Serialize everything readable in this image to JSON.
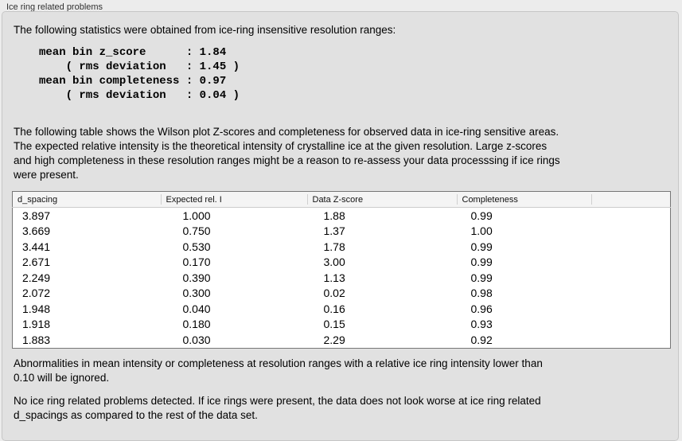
{
  "panel": {
    "title": "Ice ring related problems"
  },
  "intro": "The following statistics were obtained from ice-ring insensitive resolution ranges:",
  "stats_block": "mean bin z_score      : 1.84\n    ( rms deviation   : 1.45 )\nmean bin completeness : 0.97\n    ( rms deviation   : 0.04 )",
  "description": "The following table shows the Wilson plot Z-scores and completeness for observed data in ice-ring sensitive areas.\nThe expected relative intensity is the theoretical intensity of crystalline ice at the given resolution. Large z-scores\nand high completeness in these resolution ranges might be a reason to re-assess your data processsing if ice rings\nwere present.",
  "table": {
    "headers": [
      "d_spacing",
      "Expected rel. I",
      "Data Z-score",
      "Completeness",
      ""
    ],
    "rows": [
      [
        "3.897",
        "1.000",
        "1.88",
        "0.99"
      ],
      [
        "3.669",
        "0.750",
        "1.37",
        "1.00"
      ],
      [
        "3.441",
        "0.530",
        "1.78",
        "0.99"
      ],
      [
        "2.671",
        "0.170",
        "3.00",
        "0.99"
      ],
      [
        "2.249",
        "0.390",
        "1.13",
        "0.99"
      ],
      [
        "2.072",
        "0.300",
        "0.02",
        "0.98"
      ],
      [
        "1.948",
        "0.040",
        "0.16",
        "0.96"
      ],
      [
        "1.918",
        "0.180",
        "0.15",
        "0.93"
      ],
      [
        "1.883",
        "0.030",
        "2.29",
        "0.92"
      ]
    ]
  },
  "ignore_note": "Abnormalities in mean intensity or completeness at resolution ranges with a relative ice ring intensity lower than\n0.10 will be ignored.",
  "conclusion": "No ice ring related problems detected. If ice rings were present, the data does not look worse at ice ring related\nd_spacings as compared to the rest of the data set.",
  "colors": {
    "window_bg": "#ececec",
    "panel_bg": "#e1e1e1",
    "table_bg": "#ffffff",
    "table_border": "#767676"
  }
}
